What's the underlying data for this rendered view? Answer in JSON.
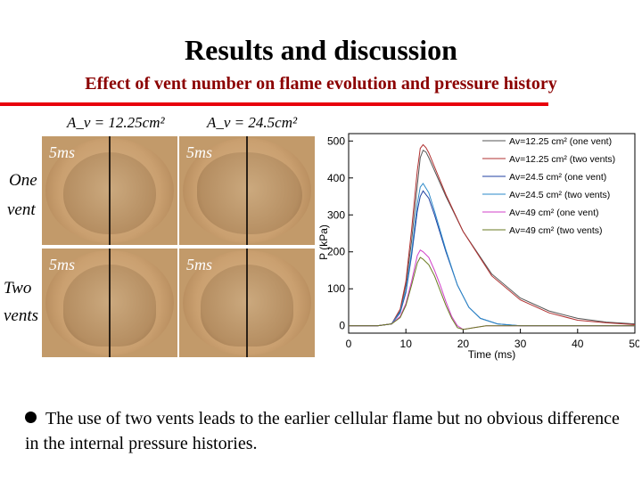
{
  "slide": {
    "title": "Results and discussion",
    "subtitle": "Effect of vent number on flame evolution and pressure history",
    "bullet": "The use of two vents leads to the earlier cellular flame but no obvious difference in the internal pressure histories."
  },
  "photos": {
    "column_labels": [
      "A_v = 12.25cm²",
      "A_v = 24.5cm²"
    ],
    "row_labels": [
      {
        "line1": "One",
        "line2": "vent"
      },
      {
        "line1": "Two",
        "line2": "vents"
      }
    ],
    "time_label": "5ms"
  },
  "chart_data": {
    "type": "line",
    "xlabel": "Time (ms)",
    "ylabel": "P (kPa)",
    "xlim": [
      0,
      50
    ],
    "ylim": [
      -20,
      520
    ],
    "xticks": [
      0,
      10,
      20,
      30,
      40,
      50
    ],
    "yticks": [
      0,
      100,
      200,
      300,
      400,
      500
    ],
    "legend_placement": "top-right",
    "series": [
      {
        "name": "Av=12.25 cm² (one vent)",
        "color": "#555555",
        "x": [
          0,
          5,
          7.5,
          9,
          10,
          11,
          12,
          12.5,
          13,
          13.5,
          14,
          15,
          17,
          20,
          25,
          30,
          35,
          40,
          45,
          50
        ],
        "y": [
          0,
          0,
          5,
          40,
          110,
          230,
          380,
          455,
          475,
          470,
          455,
          420,
          350,
          255,
          140,
          75,
          40,
          20,
          10,
          5
        ]
      },
      {
        "name": "Av=12.25 cm² (two vents)",
        "color": "#b03030",
        "x": [
          0,
          5,
          7.5,
          9,
          10,
          11,
          12,
          12.5,
          13,
          13.5,
          14,
          15,
          17,
          20,
          25,
          30,
          35,
          40,
          45,
          50
        ],
        "y": [
          0,
          0,
          5,
          45,
          120,
          260,
          420,
          480,
          490,
          482,
          468,
          430,
          355,
          255,
          135,
          70,
          35,
          15,
          8,
          3
        ]
      },
      {
        "name": "Av=24.5 cm² (one vent)",
        "color": "#1f3fa0",
        "x": [
          0,
          5,
          7.5,
          9,
          10,
          11,
          12,
          12.5,
          13,
          14,
          15,
          17,
          19,
          21,
          23,
          26,
          30,
          40,
          50
        ],
        "y": [
          0,
          0,
          5,
          35,
          90,
          190,
          310,
          350,
          365,
          345,
          300,
          200,
          110,
          50,
          20,
          5,
          0,
          0,
          0
        ]
      },
      {
        "name": "Av=24.5 cm² (two vents)",
        "color": "#2a88c8",
        "x": [
          0,
          5,
          7.5,
          9,
          10,
          11,
          12,
          12.5,
          13,
          14,
          15,
          17,
          19,
          21,
          23,
          26,
          30,
          40,
          50
        ],
        "y": [
          0,
          0,
          5,
          38,
          95,
          200,
          330,
          375,
          385,
          360,
          310,
          205,
          110,
          50,
          20,
          5,
          0,
          0,
          0
        ]
      },
      {
        "name": "Av=49 cm² (one vent)",
        "color": "#d040c8",
        "x": [
          0,
          5,
          7.5,
          9,
          10,
          11,
          12,
          12.5,
          13,
          14,
          15,
          16,
          17,
          18,
          19,
          20,
          22,
          24,
          30,
          40,
          50
        ],
        "y": [
          0,
          0,
          5,
          25,
          60,
          120,
          190,
          205,
          200,
          185,
          150,
          110,
          65,
          25,
          0,
          -10,
          -5,
          0,
          0,
          0,
          0
        ]
      },
      {
        "name": "Av=49 cm² (two vents)",
        "color": "#6a7a20",
        "x": [
          0,
          5,
          7.5,
          9,
          10,
          11,
          12,
          12.5,
          13,
          14,
          15,
          16,
          17,
          18,
          19,
          20,
          22,
          24,
          30,
          40,
          50
        ],
        "y": [
          0,
          0,
          5,
          22,
          55,
          110,
          170,
          185,
          180,
          165,
          135,
          95,
          55,
          20,
          -5,
          -10,
          -5,
          0,
          0,
          0,
          0
        ]
      }
    ]
  }
}
